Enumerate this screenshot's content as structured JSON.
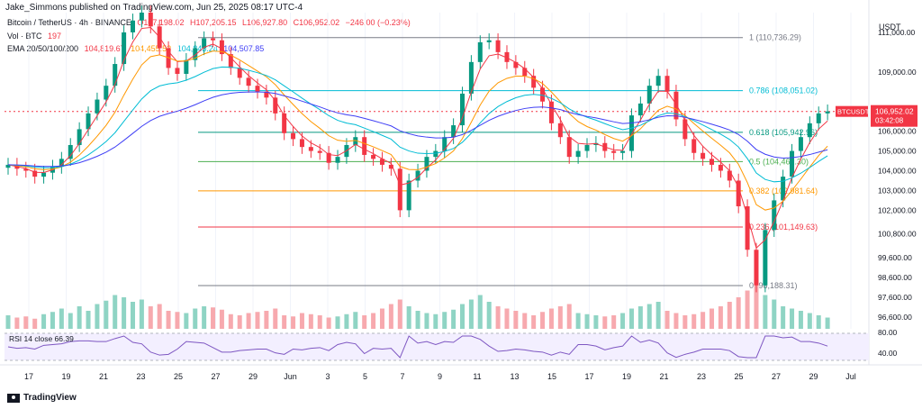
{
  "header": {
    "published": "Jake_Simmons published on TradingView.com, Jun 25, 2025 08:17 UTC-4"
  },
  "legend": {
    "symbol": "Bitcoin / TetherUS · 4h · BINANCE",
    "open": "O107,198.02",
    "high": "H107,205.15",
    "low": "L106,927.80",
    "close": "C106,952.02",
    "change": "−246.00 (−0.23%)",
    "vol_label": "Vol · BTC",
    "vol_value": "197",
    "ema_label": "EMA 20/50/100/200",
    "ema_values": [
      "104,819.67",
      "104,455.53",
      "104,843.24",
      "104,507.85"
    ],
    "ema_colors": [
      "#f23645",
      "#ff9800",
      "#00bcd4",
      "#3f3ff5"
    ]
  },
  "rsi_label": "RSI 14 close 66.39",
  "price_axis": {
    "currency": "USDT",
    "ticks": [
      "111,000.00",
      "109,000.00",
      "107,000.00",
      "106,000.00",
      "105,000.00",
      "104,000.00",
      "103,000.00",
      "102,000.00",
      "100,800.00",
      "99,600.00",
      "98,600.00",
      "97,600.00",
      "96,600.00"
    ],
    "rsi_ticks": [
      "80.00",
      "40.00"
    ]
  },
  "price_tag": {
    "symbol": "BTCUSDT",
    "price": "106,952.02",
    "countdown": "03:42:08"
  },
  "footer": {
    "brand": "TradingView"
  },
  "colors": {
    "up": "#089981",
    "down": "#f23645",
    "grid": "#f0f3fa"
  },
  "chart_data": {
    "type": "candlestick",
    "x_ticks": [
      "17",
      "19",
      "21",
      "23",
      "25",
      "27",
      "29",
      "Jun",
      "3",
      "5",
      "7",
      "9",
      "11",
      "13",
      "15",
      "17",
      "19",
      "21",
      "23",
      "25",
      "27",
      "29",
      "Jul"
    ],
    "ylim": [
      96000,
      112000
    ],
    "fibonacci": [
      {
        "level": "1",
        "price": 110736.29,
        "label": "1 (110,736.29)",
        "color": "#787b86"
      },
      {
        "level": "0.786",
        "price": 108051.02,
        "label": "0.786 (108,051.02)",
        "color": "#00bcd4"
      },
      {
        "level": "0.618",
        "price": 105942.96,
        "label": "0.618 (105,942.96)",
        "color": "#089981"
      },
      {
        "level": "0.5",
        "price": 104462.3,
        "label": "0.5 (104,462.30)",
        "color": "#4caf50"
      },
      {
        "level": "0.382",
        "price": 102981.64,
        "label": "0.382 (102,981.64)",
        "color": "#ff9800"
      },
      {
        "level": "0.236",
        "price": 101149.63,
        "label": "0.236 (101,149.63)",
        "color": "#f23645"
      },
      {
        "level": "0",
        "price": 98188.31,
        "label": "0 (98,188.31)",
        "color": "#787b86"
      }
    ],
    "closes": [
      104300,
      104100,
      104000,
      103700,
      103900,
      104200,
      104600,
      105300,
      106100,
      106900,
      107600,
      108300,
      109400,
      111000,
      111600,
      112000,
      111300,
      110200,
      109200,
      108900,
      109600,
      110200,
      110700,
      110600,
      109900,
      109200,
      108700,
      108300,
      108000,
      107700,
      106900,
      105900,
      105600,
      105200,
      105000,
      104900,
      104400,
      104700,
      105300,
      105700,
      104800,
      104600,
      104300,
      104100,
      102000,
      103500,
      104000,
      104700,
      105000,
      105700,
      106300,
      107900,
      109500,
      110500,
      110600,
      110000,
      109500,
      109200,
      108800,
      108200,
      107500,
      106400,
      105700,
      104700,
      105000,
      105300,
      105400,
      105000,
      104900,
      105000,
      106800,
      107400,
      108300,
      108800,
      108000,
      106600,
      105600,
      104900,
      104600,
      104300,
      104000,
      103500,
      102200,
      100000,
      98200,
      101000,
      102500,
      103700,
      105000,
      105700,
      106400,
      106900,
      107000
    ],
    "volumes": [
      12,
      10,
      11,
      9,
      13,
      15,
      18,
      14,
      20,
      16,
      22,
      25,
      30,
      28,
      24,
      26,
      20,
      22,
      16,
      15,
      14,
      18,
      20,
      19,
      17,
      13,
      12,
      14,
      15,
      16,
      18,
      12,
      11,
      14,
      13,
      12,
      10,
      11,
      13,
      15,
      12,
      14,
      18,
      22,
      26,
      20,
      16,
      14,
      13,
      15,
      17,
      22,
      26,
      30,
      24,
      20,
      18,
      16,
      14,
      12,
      15,
      18,
      20,
      22,
      14,
      13,
      12,
      11,
      12,
      14,
      18,
      20,
      22,
      24,
      16,
      14,
      12,
      13,
      15,
      18,
      20,
      24,
      28,
      34,
      44,
      30,
      26,
      20,
      18,
      16,
      14,
      12,
      10
    ]
  }
}
